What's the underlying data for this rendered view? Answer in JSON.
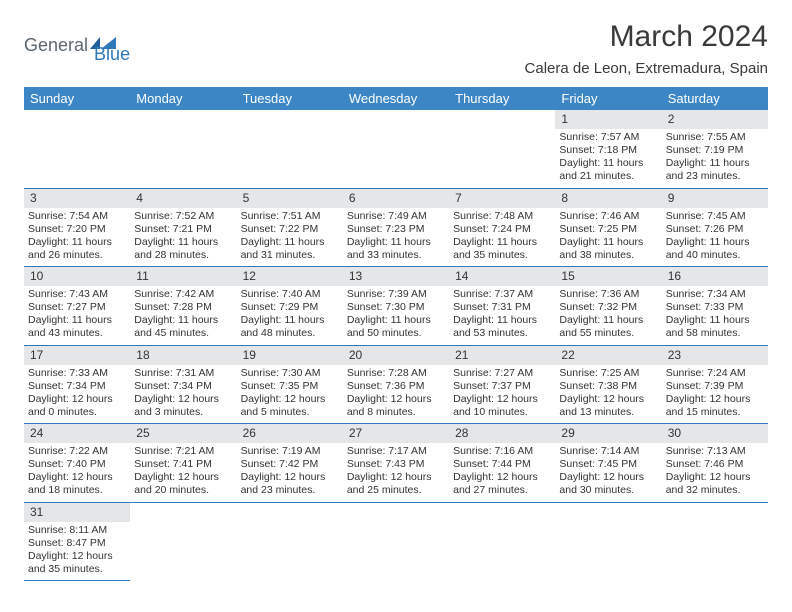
{
  "logo": {
    "part1": "General",
    "part2": "Blue"
  },
  "title": "March 2024",
  "location": "Calera de Leon, Extremadura, Spain",
  "colors": {
    "header_bg": "#3d86c6",
    "header_text": "#ffffff",
    "daynum_bg": "#e4e6e8",
    "row_divider": "#2f78ba",
    "logo_gray": "#5c6670",
    "logo_blue": "#2f78ba"
  },
  "dayHeaders": [
    "Sunday",
    "Monday",
    "Tuesday",
    "Wednesday",
    "Thursday",
    "Friday",
    "Saturday"
  ],
  "weeks": [
    [
      null,
      null,
      null,
      null,
      null,
      {
        "n": "1",
        "sr": "Sunrise: 7:57 AM",
        "ss": "Sunset: 7:18 PM",
        "dl": "Daylight: 11 hours and 21 minutes."
      },
      {
        "n": "2",
        "sr": "Sunrise: 7:55 AM",
        "ss": "Sunset: 7:19 PM",
        "dl": "Daylight: 11 hours and 23 minutes."
      }
    ],
    [
      {
        "n": "3",
        "sr": "Sunrise: 7:54 AM",
        "ss": "Sunset: 7:20 PM",
        "dl": "Daylight: 11 hours and 26 minutes."
      },
      {
        "n": "4",
        "sr": "Sunrise: 7:52 AM",
        "ss": "Sunset: 7:21 PM",
        "dl": "Daylight: 11 hours and 28 minutes."
      },
      {
        "n": "5",
        "sr": "Sunrise: 7:51 AM",
        "ss": "Sunset: 7:22 PM",
        "dl": "Daylight: 11 hours and 31 minutes."
      },
      {
        "n": "6",
        "sr": "Sunrise: 7:49 AM",
        "ss": "Sunset: 7:23 PM",
        "dl": "Daylight: 11 hours and 33 minutes."
      },
      {
        "n": "7",
        "sr": "Sunrise: 7:48 AM",
        "ss": "Sunset: 7:24 PM",
        "dl": "Daylight: 11 hours and 35 minutes."
      },
      {
        "n": "8",
        "sr": "Sunrise: 7:46 AM",
        "ss": "Sunset: 7:25 PM",
        "dl": "Daylight: 11 hours and 38 minutes."
      },
      {
        "n": "9",
        "sr": "Sunrise: 7:45 AM",
        "ss": "Sunset: 7:26 PM",
        "dl": "Daylight: 11 hours and 40 minutes."
      }
    ],
    [
      {
        "n": "10",
        "sr": "Sunrise: 7:43 AM",
        "ss": "Sunset: 7:27 PM",
        "dl": "Daylight: 11 hours and 43 minutes."
      },
      {
        "n": "11",
        "sr": "Sunrise: 7:42 AM",
        "ss": "Sunset: 7:28 PM",
        "dl": "Daylight: 11 hours and 45 minutes."
      },
      {
        "n": "12",
        "sr": "Sunrise: 7:40 AM",
        "ss": "Sunset: 7:29 PM",
        "dl": "Daylight: 11 hours and 48 minutes."
      },
      {
        "n": "13",
        "sr": "Sunrise: 7:39 AM",
        "ss": "Sunset: 7:30 PM",
        "dl": "Daylight: 11 hours and 50 minutes."
      },
      {
        "n": "14",
        "sr": "Sunrise: 7:37 AM",
        "ss": "Sunset: 7:31 PM",
        "dl": "Daylight: 11 hours and 53 minutes."
      },
      {
        "n": "15",
        "sr": "Sunrise: 7:36 AM",
        "ss": "Sunset: 7:32 PM",
        "dl": "Daylight: 11 hours and 55 minutes."
      },
      {
        "n": "16",
        "sr": "Sunrise: 7:34 AM",
        "ss": "Sunset: 7:33 PM",
        "dl": "Daylight: 11 hours and 58 minutes."
      }
    ],
    [
      {
        "n": "17",
        "sr": "Sunrise: 7:33 AM",
        "ss": "Sunset: 7:34 PM",
        "dl": "Daylight: 12 hours and 0 minutes."
      },
      {
        "n": "18",
        "sr": "Sunrise: 7:31 AM",
        "ss": "Sunset: 7:34 PM",
        "dl": "Daylight: 12 hours and 3 minutes."
      },
      {
        "n": "19",
        "sr": "Sunrise: 7:30 AM",
        "ss": "Sunset: 7:35 PM",
        "dl": "Daylight: 12 hours and 5 minutes."
      },
      {
        "n": "20",
        "sr": "Sunrise: 7:28 AM",
        "ss": "Sunset: 7:36 PM",
        "dl": "Daylight: 12 hours and 8 minutes."
      },
      {
        "n": "21",
        "sr": "Sunrise: 7:27 AM",
        "ss": "Sunset: 7:37 PM",
        "dl": "Daylight: 12 hours and 10 minutes."
      },
      {
        "n": "22",
        "sr": "Sunrise: 7:25 AM",
        "ss": "Sunset: 7:38 PM",
        "dl": "Daylight: 12 hours and 13 minutes."
      },
      {
        "n": "23",
        "sr": "Sunrise: 7:24 AM",
        "ss": "Sunset: 7:39 PM",
        "dl": "Daylight: 12 hours and 15 minutes."
      }
    ],
    [
      {
        "n": "24",
        "sr": "Sunrise: 7:22 AM",
        "ss": "Sunset: 7:40 PM",
        "dl": "Daylight: 12 hours and 18 minutes."
      },
      {
        "n": "25",
        "sr": "Sunrise: 7:21 AM",
        "ss": "Sunset: 7:41 PM",
        "dl": "Daylight: 12 hours and 20 minutes."
      },
      {
        "n": "26",
        "sr": "Sunrise: 7:19 AM",
        "ss": "Sunset: 7:42 PM",
        "dl": "Daylight: 12 hours and 23 minutes."
      },
      {
        "n": "27",
        "sr": "Sunrise: 7:17 AM",
        "ss": "Sunset: 7:43 PM",
        "dl": "Daylight: 12 hours and 25 minutes."
      },
      {
        "n": "28",
        "sr": "Sunrise: 7:16 AM",
        "ss": "Sunset: 7:44 PM",
        "dl": "Daylight: 12 hours and 27 minutes."
      },
      {
        "n": "29",
        "sr": "Sunrise: 7:14 AM",
        "ss": "Sunset: 7:45 PM",
        "dl": "Daylight: 12 hours and 30 minutes."
      },
      {
        "n": "30",
        "sr": "Sunrise: 7:13 AM",
        "ss": "Sunset: 7:46 PM",
        "dl": "Daylight: 12 hours and 32 minutes."
      }
    ],
    [
      {
        "n": "31",
        "sr": "Sunrise: 8:11 AM",
        "ss": "Sunset: 8:47 PM",
        "dl": "Daylight: 12 hours and 35 minutes."
      },
      null,
      null,
      null,
      null,
      null,
      null
    ]
  ]
}
